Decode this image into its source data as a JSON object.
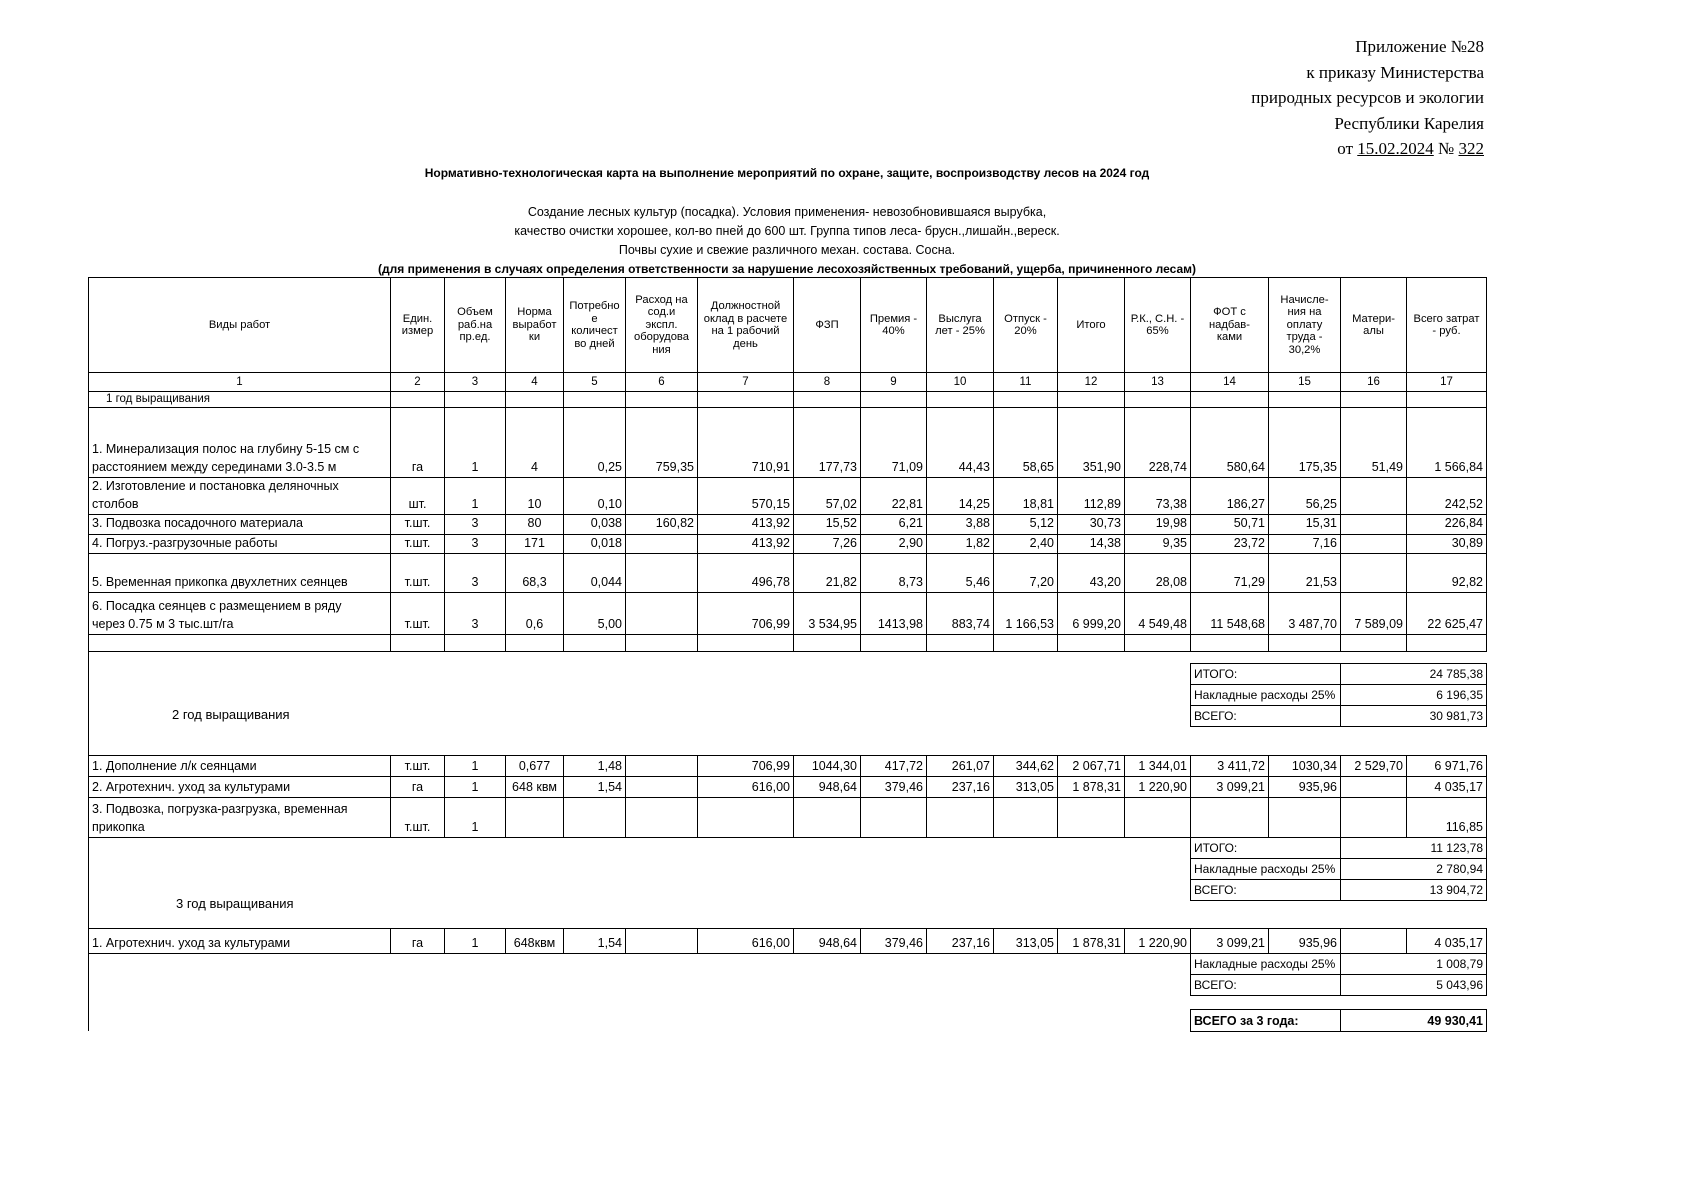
{
  "appendix": {
    "line1": "Приложение №28",
    "line2": "к приказу Министерства",
    "line3": "природных ресурсов и экологии",
    "line4": "Республики Карелия",
    "from_prefix": "от ",
    "date": "15.02.2024",
    "number_prefix": " № ",
    "number": "322"
  },
  "title": "Нормативно-технологическая карта на выполнение мероприятий  по охране, защите, воспроизводству лесов на 2024 год",
  "conditions": [
    "Создание лесных культур (посадка). Условия применения- невозобновившаяся вырубка,",
    "качество очистки хорошее, кол-во пней до 600 шт. Группа типов леса- брусн.,лишайн.,вереск.",
    "Почвы сухие и свежие различного механ. состава. Сосна."
  ],
  "conditions_note": "(для применения в случаях определения ответственности за нарушение лесохозяйственных требований, ущерба, причиненного лесам)",
  "table": {
    "headers": [
      "Виды работ",
      "Един.\nизмер",
      "Объем\nраб.на\nпр.ед.",
      "Норма\nвыработ\nки",
      "Потребно\nе\nколичест\nво дней",
      "Расход на\nсод.и\nэкспл.\nоборудова\nния",
      "Должностной\nоклад в расчете\nна 1 рабочий\nдень",
      "ФЗП",
      "Премия -\n40%",
      "Выслуга\nлет - 25%",
      "Отпуск -\n20%",
      "Итого",
      "Р.К.,  С.Н. -\n65%",
      "ФОТ с\nнадбав-\nками",
      "Начисле-\nния на\nоплату\nтруда -\n30,2%",
      "Матери-\nалы",
      "Всего затрат\n- руб."
    ],
    "col_numbers": [
      "1",
      "2",
      "3",
      "4",
      "5",
      "6",
      "7",
      "8",
      "9",
      "10",
      "11",
      "12",
      "13",
      "14",
      "15",
      "16",
      "17"
    ]
  },
  "year1": {
    "section_label": "1 год выращивания",
    "rows": [
      [
        "1. Минерализация полос на глубину 5-15 см с\nрасстоянием между серединами 3.0-3.5 м",
        "га",
        "1",
        "4",
        "0,25",
        "759,35",
        "710,91",
        "177,73",
        "71,09",
        "44,43",
        "58,65",
        "351,90",
        "228,74",
        "580,64",
        "175,35",
        "51,49",
        "1 566,84"
      ],
      [
        "2. Изготовление и постановка  деляночных\nстолбов",
        "шт.",
        "1",
        "10",
        "0,10",
        "",
        "570,15",
        "57,02",
        "22,81",
        "14,25",
        "18,81",
        "112,89",
        "73,38",
        "186,27",
        "56,25",
        "",
        "242,52"
      ],
      [
        "3. Подвозка посадочного материала",
        "т.шт.",
        "3",
        "80",
        "0,038",
        "160,82",
        "413,92",
        "15,52",
        "6,21",
        "3,88",
        "5,12",
        "30,73",
        "19,98",
        "50,71",
        "15,31",
        "",
        "226,84"
      ],
      [
        "4. Погруз.-разгрузочные работы",
        "т.шт.",
        "3",
        "171",
        "0,018",
        "",
        "413,92",
        "7,26",
        "2,90",
        "1,82",
        "2,40",
        "14,38",
        "9,35",
        "23,72",
        "7,16",
        "",
        "30,89"
      ],
      [
        "5. Временная прикопка двухлетних  сеянцев",
        "т.шт.",
        "3",
        "68,3",
        "0,044",
        "",
        "496,78",
        "21,82",
        "8,73",
        "5,46",
        "7,20",
        "43,20",
        "28,08",
        "71,29",
        "21,53",
        "",
        "92,82"
      ],
      [
        "6. Посадка сеянцев с размещением в ряду\nчерез 0.75 м 3 тыс.шт/га",
        "т.шт.",
        "3",
        "0,6",
        "5,00",
        "",
        "706,99",
        "3 534,95",
        "1413,98",
        "883,74",
        "1 166,53",
        "6 999,20",
        "4 549,48",
        "11 548,68",
        "3 487,70",
        "7 589,09",
        "22 625,47"
      ]
    ],
    "summary": [
      {
        "label": "ИТОГО:",
        "value": "24 785,38"
      },
      {
        "label": "Накладные расходы 25%",
        "value": "6 196,35"
      },
      {
        "label": "ВСЕГО:",
        "value": "30 981,73"
      }
    ]
  },
  "year2": {
    "label": "2 год  выращивания",
    "rows": [
      [
        "1. Дополнение л/к сеянцами",
        "т.шт.",
        "1",
        "0,677",
        "1,48",
        "",
        "706,99",
        "1044,30",
        "417,72",
        "261,07",
        "344,62",
        "2 067,71",
        "1 344,01",
        "3 411,72",
        "1030,34",
        "2 529,70",
        "6 971,76"
      ],
      [
        "2. Агротехнич. уход за культурами",
        "га",
        "1",
        "648 квм",
        "1,54",
        "",
        "616,00",
        "948,64",
        "379,46",
        "237,16",
        "313,05",
        "1 878,31",
        "1 220,90",
        "3 099,21",
        "935,96",
        "",
        "4 035,17"
      ],
      [
        "3. Подвозка, погрузка-разгрузка, временная\nприкопка",
        "т.шт.",
        "1",
        "",
        "",
        "",
        "",
        "",
        "",
        "",
        "",
        "",
        "",
        "",
        "",
        "",
        "116,85"
      ]
    ],
    "summary": [
      {
        "label": "ИТОГО:",
        "value": "11 123,78"
      },
      {
        "label": "Накладные расходы 25%",
        "value": "2 780,94"
      },
      {
        "label": "ВСЕГО:",
        "value": "13 904,72"
      }
    ]
  },
  "year3": {
    "label": "3  год  выращивания",
    "rows": [
      [
        "1. Агротехнич. уход за культурами",
        "га",
        "1",
        "648квм",
        "1,54",
        "",
        "616,00",
        "948,64",
        "379,46",
        "237,16",
        "313,05",
        "1 878,31",
        "1 220,90",
        "3 099,21",
        "935,96",
        "",
        "4 035,17"
      ]
    ],
    "summary": [
      {
        "label": "Накладные расходы 25%",
        "value": "1 008,79"
      },
      {
        "label": "ВСЕГО:",
        "value": "5 043,96"
      }
    ]
  },
  "grand_total": {
    "label": "ВСЕГО за 3 года:",
    "value": "49 930,41"
  }
}
